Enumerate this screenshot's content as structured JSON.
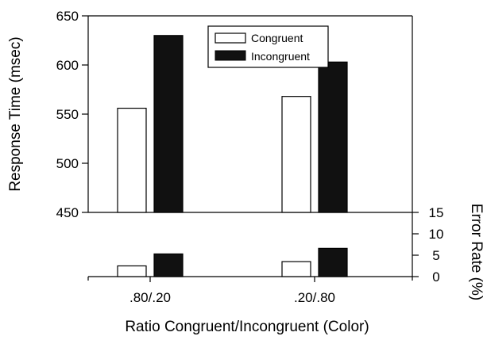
{
  "chart_data": {
    "type": "bar",
    "xlabel": "Ratio Congruent/Incongruent (Color)",
    "categories": [
      ".80/.20",
      ".20/.80"
    ],
    "legend": {
      "placement": "top-center",
      "entries": [
        "Congruent",
        "Incongruent"
      ]
    },
    "colors": {
      "Congruent": "#ffffff",
      "Incongruent": "#111111",
      "axis": "#000000"
    },
    "panels": [
      {
        "name": "response-time",
        "ylabel": "Response Time (msec)",
        "ylim": [
          450,
          650
        ],
        "yticks": [
          450,
          500,
          550,
          600,
          650
        ],
        "axis_side": "left",
        "series": [
          {
            "name": "Congruent",
            "values": [
              556,
              568
            ]
          },
          {
            "name": "Incongruent",
            "values": [
              630,
              603
            ]
          }
        ]
      },
      {
        "name": "error-rate",
        "ylabel": "Error Rate (%)",
        "ylim": [
          0,
          15
        ],
        "yticks": [
          0,
          5,
          10,
          15
        ],
        "axis_side": "right",
        "series": [
          {
            "name": "Congruent",
            "values": [
              2.5,
              3.5
            ]
          },
          {
            "name": "Incongruent",
            "values": [
              5.3,
              6.6
            ]
          }
        ]
      }
    ],
    "grid": false
  }
}
